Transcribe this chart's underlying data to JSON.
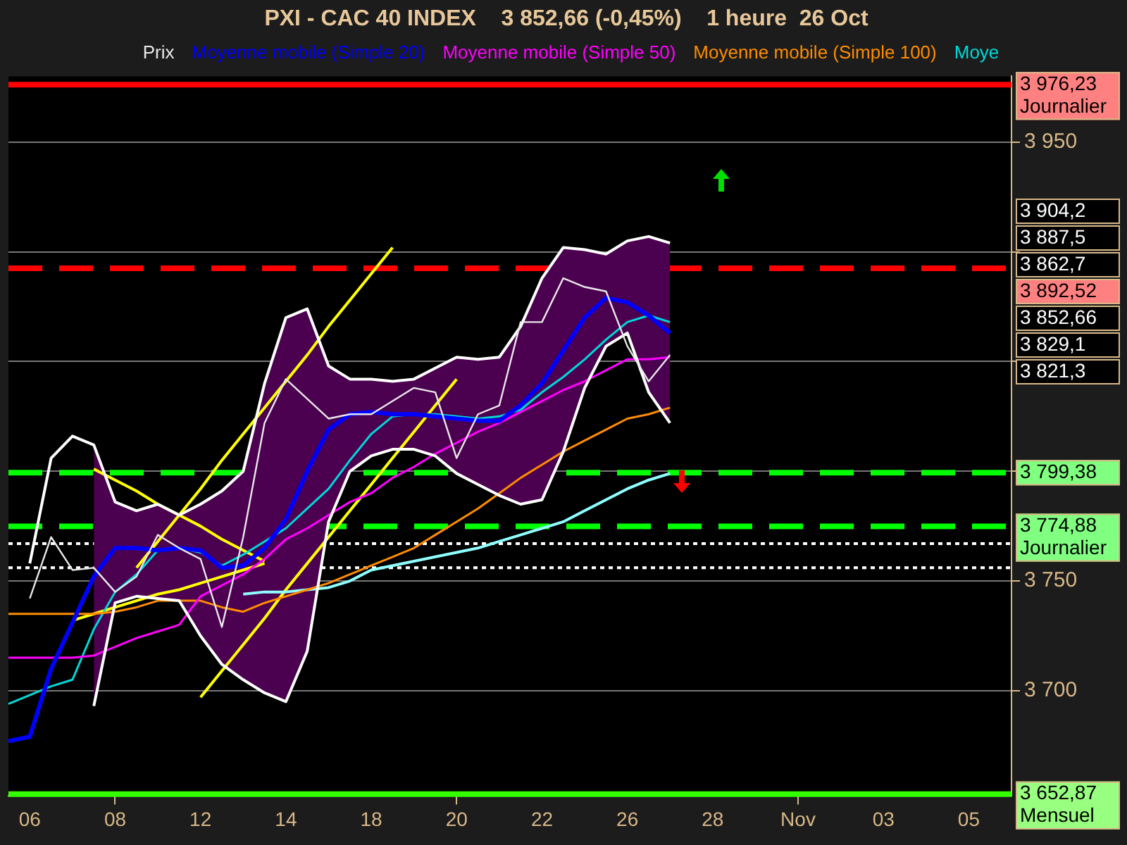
{
  "chart_data": {
    "type": "line",
    "title": "PXI - CAC 40 INDEX    3 852,66 (-0,45%)    1 heure  26 Oct",
    "categories": [
      null,
      "06",
      null,
      null,
      null,
      "08",
      null,
      null,
      null,
      "12",
      null,
      null,
      null,
      "14",
      null,
      null,
      null,
      "18",
      null,
      null,
      null,
      "20",
      null,
      null,
      null,
      "22",
      null,
      null,
      null,
      "26",
      null,
      null,
      null,
      "28",
      null,
      null,
      null,
      "Nov",
      null,
      null,
      null,
      "03",
      null,
      null,
      null,
      "05",
      null,
      null
    ],
    "ylim": [
      3652,
      3980
    ],
    "yticks": [
      {
        "value": 3700,
        "label": "3 700"
      },
      {
        "value": 3750,
        "label": "3 750"
      },
      {
        "value": 3800,
        "label": null
      },
      {
        "value": 3850,
        "label": null
      },
      {
        "value": 3900,
        "label": null
      },
      {
        "value": 3950,
        "label": "3 950"
      }
    ],
    "grid": "y",
    "legend": "top",
    "marker": "none",
    "line_style": "solid",
    "series": [
      {
        "name": "Prix",
        "color": "#e8e8e8",
        "values": [
          null,
          3742,
          3770,
          3755,
          3756,
          3745,
          3752,
          3771,
          3765,
          3760,
          3729,
          3770,
          3822,
          3842,
          3833,
          3824,
          3826,
          3826,
          3832,
          3838,
          3836,
          3806,
          3826,
          3830,
          3868,
          3868,
          3888,
          3884,
          3882,
          3857,
          3841,
          3853,
          null,
          null,
          null,
          null,
          null,
          null,
          null,
          null,
          null,
          null,
          null,
          null,
          null,
          null,
          null,
          null
        ]
      },
      {
        "name": "Moyenne mobile (Simple 20)",
        "color": "#0000ff",
        "values": [
          3677,
          3679,
          3710,
          3731,
          3752,
          3765,
          3765,
          3764,
          3765,
          3764,
          3756,
          3757,
          3765,
          3778,
          3800,
          3819,
          3826,
          3827,
          3826,
          3826,
          3825,
          3824,
          3823,
          3823,
          3830,
          3840,
          3855,
          3870,
          3879,
          3877,
          3871,
          3863,
          null,
          null,
          null,
          null,
          null,
          null,
          null,
          null,
          null,
          null,
          null,
          null,
          null,
          null,
          null,
          null
        ],
        "upper": [
          null,
          null,
          null,
          null,
          3812,
          3786,
          3782,
          3785,
          3780,
          3785,
          3791,
          3800,
          3840,
          3870,
          3874,
          3848,
          3842,
          3842,
          3841,
          3842,
          3847,
          3852,
          3851,
          3852,
          3866,
          3888,
          3902,
          3901,
          3899,
          3905,
          3907,
          3904,
          null,
          null,
          null,
          null,
          null,
          null,
          null,
          null,
          null,
          null,
          null,
          null,
          null,
          null,
          null,
          null
        ],
        "lower": [
          null,
          null,
          null,
          null,
          3693,
          3740,
          3743,
          3742,
          3741,
          3725,
          3712,
          3705,
          3699,
          3695,
          3718,
          3777,
          3800,
          3807,
          3810,
          3810,
          3807,
          3799,
          3794,
          3789,
          3785,
          3787,
          3809,
          3838,
          3857,
          3863,
          3836,
          3822,
          null,
          null,
          null,
          null,
          null,
          null,
          null,
          null,
          null,
          null,
          null,
          null,
          null,
          null,
          null,
          null
        ]
      },
      {
        "color": "#ffffff",
        "values": [
          null,
          3758,
          3806,
          3816,
          3812,
          3786,
          3782,
          3785,
          3780,
          3785,
          3791,
          3800,
          3840,
          3870,
          3874,
          3848,
          3842,
          3842,
          3841,
          3842,
          3847,
          3852,
          3851,
          3852,
          3866,
          3888,
          3902,
          3901,
          3899,
          3905,
          3907,
          3904,
          null,
          null,
          null,
          null,
          null,
          null,
          null,
          null,
          null,
          null,
          null,
          null,
          null,
          null,
          null,
          null
        ]
      },
      {
        "color": "#ffffff",
        "values": [
          null,
          null,
          null,
          null,
          3693,
          3740,
          3743,
          3742,
          3741,
          3725,
          3712,
          3705,
          3699,
          3695,
          3718,
          3777,
          3800,
          3807,
          3810,
          3810,
          3807,
          3799,
          3794,
          3789,
          3785,
          3787,
          3809,
          3838,
          3857,
          3863,
          3836,
          3822,
          null,
          null,
          null,
          null,
          null,
          null,
          null,
          null,
          null,
          null,
          null,
          null,
          null,
          null,
          null,
          null
        ]
      },
      {
        "name": "Moyenne mobile (Simple 50)",
        "color": "#ff00ff",
        "values": [
          3715,
          3715,
          3715,
          3715,
          3716,
          3720,
          3724,
          3727,
          3730,
          3743,
          3748,
          3753,
          3760,
          3769,
          3774,
          3780,
          3786,
          3790,
          3797,
          3802,
          3808,
          3813,
          3818,
          3822,
          3827,
          3832,
          3837,
          3841,
          3846,
          3851,
          3851,
          3852,
          null,
          null,
          null,
          null,
          null,
          null,
          null,
          null,
          null,
          null,
          null,
          null,
          null,
          null,
          null,
          null
        ]
      },
      {
        "name": "Moyenne mobile (Simple 100)",
        "color": "#ff8c00",
        "values": [
          3735,
          3735,
          3735,
          3735,
          3735,
          3736,
          3738,
          3741,
          3741,
          3741,
          3738,
          3736,
          3740,
          3743,
          3746,
          3749,
          3753,
          3757,
          3761,
          3765,
          3771,
          3777,
          3783,
          3790,
          3797,
          3803,
          3809,
          3814,
          3819,
          3824,
          3826,
          3829,
          null,
          null,
          null,
          null,
          null,
          null,
          null,
          null,
          null,
          null,
          null,
          null,
          null,
          null,
          null,
          null
        ]
      },
      {
        "name": "Moye",
        "color": "#00d8d8",
        "values": [
          3694,
          3698,
          3702,
          3705,
          3728,
          3745,
          3753,
          3764,
          3765,
          3763,
          3757,
          3762,
          3768,
          3774,
          3783,
          3792,
          3805,
          3817,
          3825,
          3826,
          3826,
          3825,
          3824,
          3825,
          3828,
          3836,
          3843,
          3851,
          3860,
          3868,
          3871,
          3868,
          null,
          null,
          null,
          null,
          null,
          null,
          null,
          null,
          null,
          null,
          null,
          null,
          null,
          null,
          null,
          null
        ]
      },
      {
        "color": "#90ffff",
        "values": [
          null,
          null,
          null,
          null,
          null,
          null,
          null,
          null,
          null,
          null,
          null,
          3744,
          3745,
          3745,
          3746,
          3747,
          3750,
          3755,
          3757,
          3759,
          3761,
          3763,
          3765,
          3768,
          3771,
          3774,
          3777,
          3782,
          3787,
          3792,
          3796,
          3799,
          null,
          null,
          null,
          null,
          null,
          null,
          null,
          null,
          null,
          null,
          null,
          null,
          null,
          null,
          null,
          null
        ]
      },
      {
        "color": "#ffff00",
        "values": [
          null,
          null,
          null,
          null,
          null,
          null,
          3756,
          3768,
          3780,
          3792,
          3805,
          3817,
          3829,
          3841,
          3853,
          3866,
          3878,
          3890,
          3902,
          null,
          null,
          null,
          null,
          null,
          null,
          null,
          null,
          null,
          null,
          null,
          null,
          null,
          null,
          null,
          null,
          null,
          null,
          null,
          null,
          null,
          null,
          null,
          null,
          null,
          null,
          null,
          null,
          null
        ]
      },
      {
        "color": "#ffff00",
        "values": [
          null,
          null,
          null,
          null,
          null,
          null,
          null,
          null,
          null,
          3697,
          3709,
          3721,
          3733,
          3746,
          3758,
          3770,
          3782,
          3794,
          3806,
          3818,
          3830,
          3842,
          null,
          null,
          null,
          null,
          null,
          null,
          null,
          null,
          null,
          null,
          null,
          null,
          null,
          null,
          null,
          null,
          null,
          null,
          null,
          null,
          null,
          null,
          null,
          null,
          null,
          null
        ]
      },
      {
        "color": "#ffff00",
        "values": [
          null,
          null,
          null,
          null,
          3801,
          3796,
          3791,
          3785,
          3780,
          3775,
          3769,
          3764,
          3759,
          null,
          null,
          null,
          null,
          null,
          null,
          null,
          null,
          null,
          null,
          null,
          null,
          null,
          null,
          null,
          null,
          null,
          null,
          null,
          null,
          null,
          null,
          null,
          null,
          null,
          null,
          null,
          null,
          null,
          null,
          null,
          null,
          null,
          null,
          null
        ]
      },
      {
        "color": "#ffff00",
        "values": [
          null,
          null,
          null,
          3732,
          3735,
          3738,
          3741,
          3744,
          3746,
          3749,
          3752,
          3755,
          3758,
          null,
          null,
          null,
          null,
          null,
          null,
          null,
          null,
          null,
          null,
          null,
          null,
          null,
          null,
          null,
          null,
          null,
          null,
          null,
          null,
          null,
          null,
          null,
          null,
          null,
          null,
          null,
          null,
          null,
          null,
          null,
          null,
          null,
          null,
          null
        ]
      }
    ],
    "ref_lines": [
      {
        "axis": "y",
        "value": 3976.23,
        "label": "3 976,23\nJournalier",
        "color": "#ff0000",
        "line_style": "solid"
      },
      {
        "axis": "y",
        "value": 3892.52,
        "label": "3 892,52",
        "color": "#ff0000",
        "line_style": "dashed"
      },
      {
        "axis": "y",
        "value": 3799.38,
        "label": "3 799,38",
        "color": "#00ff00",
        "line_style": "dashed"
      },
      {
        "axis": "y",
        "value": 3774.88,
        "label": "3 774,88\nJournalier",
        "color": "#00ff00",
        "line_style": "dashed"
      },
      {
        "axis": "y",
        "value": 3767,
        "color": "#ffffff",
        "line_style": "dotted"
      },
      {
        "axis": "y",
        "value": 3756,
        "color": "#ffffff",
        "line_style": "dotted"
      },
      {
        "axis": "y",
        "value": 3652.87,
        "label": "3 652,87\nMensuel",
        "color": "#33ff00",
        "line_style": "solid"
      }
    ],
    "annotations": [
      "3 904,2",
      "3 887,5",
      "3 862,7",
      "3 852,66",
      "3 829,1",
      "3 821,3"
    ]
  }
}
